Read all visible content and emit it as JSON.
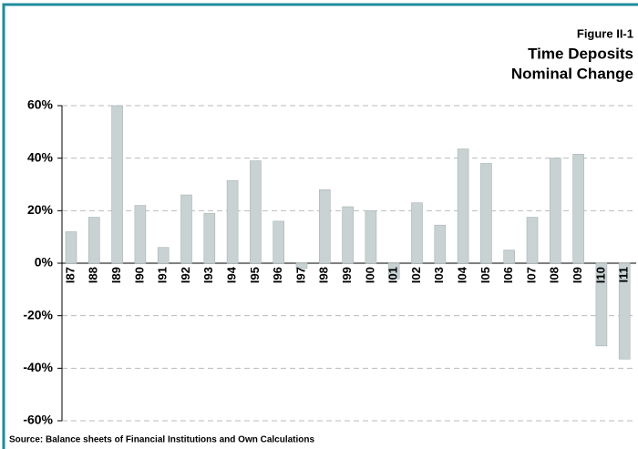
{
  "chart_data": {
    "type": "bar",
    "title": "Time Deposits",
    "subtitle": "Nominal Change",
    "figure_label": "Figure II-1",
    "source": "Source: Balance sheets of Financial Institutions and Own Calculations",
    "categories": [
      "I87",
      "I88",
      "I89",
      "I90",
      "I91",
      "I92",
      "I93",
      "I94",
      "I95",
      "I96",
      "I97",
      "I98",
      "I99",
      "I00",
      "I01",
      "I02",
      "I03",
      "I04",
      "I05",
      "I06",
      "I07",
      "I08",
      "I09",
      "I10",
      "I11"
    ],
    "values": [
      12,
      17.5,
      60,
      22,
      6,
      26,
      19,
      31.5,
      39,
      16,
      -2,
      28,
      21.5,
      20,
      -6,
      23,
      14.5,
      43.5,
      38,
      5,
      17.5,
      40,
      41.5,
      -31.5,
      -36.5
    ],
    "color": "#c8d2d2",
    "ylim": [
      -60,
      60
    ],
    "yticks": [
      {
        "value": -60,
        "label": "-60%"
      },
      {
        "value": -40,
        "label": "-40%"
      },
      {
        "value": -20,
        "label": "-20%"
      },
      {
        "value": 0,
        "label": "0%"
      },
      {
        "value": 20,
        "label": "20%"
      },
      {
        "value": 40,
        "label": "40%"
      },
      {
        "value": 60,
        "label": "60%"
      }
    ],
    "grid": true
  }
}
